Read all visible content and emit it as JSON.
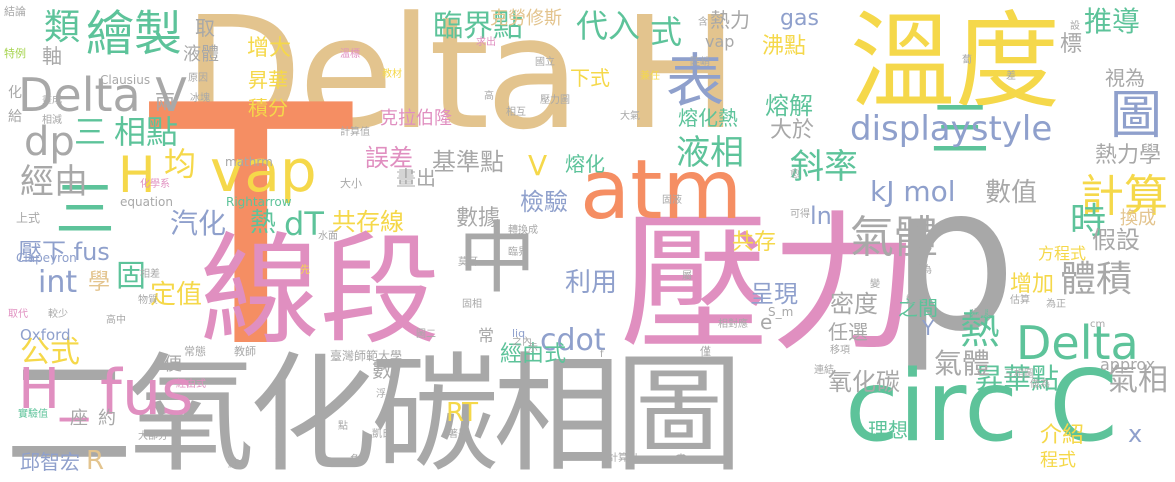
{
  "words": {
    "T": "T",
    "delta_h": "Delta H",
    "p": "p",
    "ya_li": "壓力",
    "xian_duan": "線段",
    "er_yang_hua_tan_xiang_tu": "二氧化碳相圖",
    "wen_du": "溫度",
    "atm": "atm",
    "circ_c": "circ C",
    "zhong": "中",
    "fus": "fus",
    "vap": "vap",
    "biao": "表",
    "delta_v": "Delta V",
    "h_fus": "H_",
    "san_top": "三",
    "lei": "類",
    "hui_zhi": "繪製",
    "tu": "圖",
    "displaystyle": "displaystyle",
    "lin_jie_dian": "臨界點",
    "dai_ru": "代入",
    "shi": "式",
    "xiang_dian": "相點",
    "dp": "dp",
    "jun": "均",
    "h_left": "H",
    "jing_you": "經由",
    "qi_ti": "氣體",
    "ji_suan": "計算",
    "shi_time": "時",
    "ti_ji": "體積",
    "delta_mid": "Delta",
    "re": "熱",
    "sheng_hua_dian": "昇華點",
    "qi_xiang": "氣相",
    "yang_hua_tan": "氧化碳",
    "tui_dao": "推導",
    "ye_xiang": "液相",
    "xie_lv": "斜率",
    "kj_mol": "kJ mol",
    "shu_zhi": "數值",
    "re_li_xue": "熱力學",
    "qi_hua": "汽化",
    "dT": "dT",
    "gong_cun_xian": "共存線",
    "ya_xia_fus": "壓下 fus",
    "int": "int",
    "xue": "學",
    "gu": "固",
    "gong_shi": "公式",
    "ding_zhi": "定值",
    "h_low": "H_",
    "fus_low": "fus",
    "qiu_zhi_hong": "邱智宏",
    "R": "R",
    "RT": "RT",
    "cdot": "cdot",
    "shu_ju": "數據",
    "jian_yan": "檢驗",
    "li_yong": "利用",
    "cheng_xian": "呈現",
    "mi_du": "密度",
    "ren_xuan": "任選",
    "zhi_jian": "之間",
    "zeng_jia": "增加",
    "jia_she": "假設",
    "fang_cheng_shi": "方程式",
    "huan_cheng": "換成",
    "gong_cun": "共存",
    "ln": "ln",
    "V": "V",
    "rong_hua": "熔化",
    "rong_hua_re": "熔化熱",
    "rong_jie": "熔解",
    "wu_cha": "誤差",
    "ji_zhun_dian": "基準點",
    "hua_chu": "畫出",
    "da_yu": "大於",
    "gas": "gas",
    "kelaixiusi": "克勞修斯",
    "kelabailong": "克拉伯隆",
    "re_li": "熱力",
    "fei_dian": "沸點",
    "shi_wei": "視為",
    "zeng_da": "增大",
    "sheng_hua": "昇華",
    "ji_fen": "積分",
    "qu": "取",
    "ye_ti": "液體",
    "zhou": "軸",
    "xia_shi": "下式",
    "biao2": "標",
    "approx": "approx",
    "x": "x",
    "li_xiang": "理想",
    "jie_shao": "介紹",
    "cheng_shi": "程式",
    "e": "e",
    "Y": "Y",
    "Oxford": "Oxford",
    "taiwan_normal": "臺灣師範大學",
    "Clapeyron": "Clapeyron",
    "Clausius": "Clausius",
    "mathrm": "mathrm",
    "Rightarrow": "Rightarrow",
    "equation": "equation",
    "S_m": "S_m",
    "liq": "liq",
    "misc_small": [
      "結論",
      "特例",
      "溫標",
      "教材",
      "國立",
      "求出",
      "含",
      "兼任",
      "原因",
      "冰塊",
      "畫成",
      "計算值",
      "相減",
      "化學系",
      "大小",
      "上式",
      "水面",
      "轉換成",
      "莫耳",
      "臨界",
      "固液",
      "屬",
      "可得",
      "固相",
      "相差",
      "物質",
      "先",
      "較少",
      "高中",
      "教師",
      "常態",
      "實驗值",
      "經由式",
      "座",
      "便",
      "約",
      "兩",
      "數",
      "常",
      "之內",
      "示",
      "f",
      "計算出",
      "畫",
      "浮",
      "凱氏",
      "負",
      "著墨",
      "純",
      "大部分",
      "點",
      "圖二",
      "僅",
      "相對應",
      "變",
      "變大",
      "差為",
      "為正",
      "cm",
      "估算",
      "步驟",
      "移項",
      "連結",
      "三相圖",
      "做為",
      "取代",
      "愈",
      "陡峭",
      "大氣",
      "壓力圖",
      "高",
      "相互",
      "蔔",
      "差",
      "設",
      "化",
      "給",
      "冰",
      "相",
      "沒",
      "假"
    ]
  }
}
